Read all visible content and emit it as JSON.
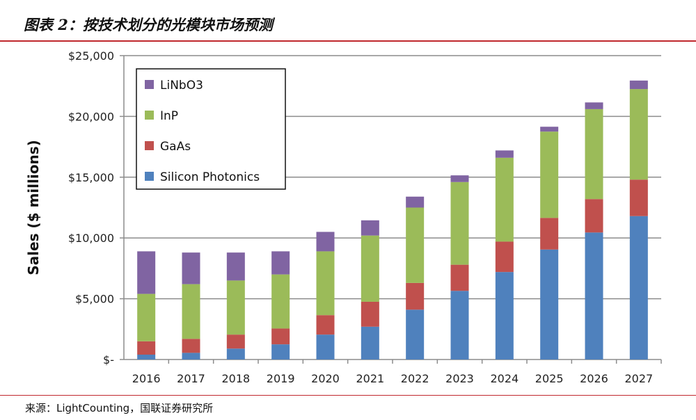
{
  "title": "图表 2：按技术划分的光模块市场预测",
  "source": "来源：LightCounting，国联证券研究所",
  "chart_data": {
    "type": "bar",
    "stacked": true,
    "ylabel": "Sales ($ millions)",
    "ylim": [
      0,
      25000
    ],
    "yticks": [
      "$-",
      "$5,000",
      "$10,000",
      "$15,000",
      "$20,000",
      "$25,000"
    ],
    "grid": true,
    "legend_placement": "top-left",
    "categories": [
      "2016",
      "2017",
      "2018",
      "2019",
      "2020",
      "2021",
      "2022",
      "2023",
      "2024",
      "2025",
      "2026",
      "2027"
    ],
    "series": [
      {
        "name": "Silicon Photonics",
        "color": "#4f81bd",
        "values": [
          400,
          550,
          900,
          1250,
          2050,
          2700,
          4100,
          5650,
          7200,
          9050,
          10450,
          11800
        ]
      },
      {
        "name": "GaAs",
        "color": "#c0504d",
        "values": [
          1100,
          1150,
          1150,
          1300,
          1600,
          2050,
          2200,
          2150,
          2500,
          2600,
          2750,
          3000
        ]
      },
      {
        "name": "InP",
        "color": "#9bbb59",
        "values": [
          3900,
          4500,
          4450,
          4450,
          5250,
          5450,
          6200,
          6800,
          6900,
          7100,
          7400,
          7450
        ]
      },
      {
        "name": "LiNbO3",
        "color": "#8064a2",
        "values": [
          3500,
          2600,
          2300,
          1900,
          1600,
          1250,
          900,
          550,
          600,
          400,
          550,
          700
        ]
      }
    ]
  }
}
